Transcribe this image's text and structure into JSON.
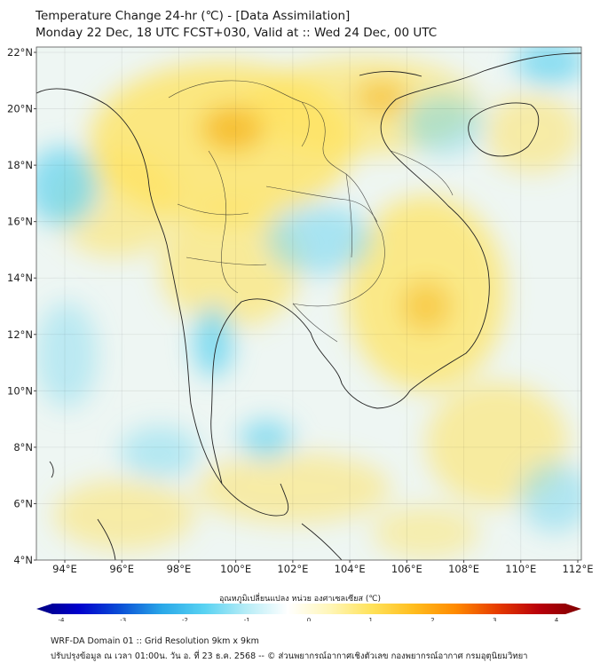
{
  "header": {
    "title_line1": "Temperature Change 24-hr (℃) - [Data Assimilation]",
    "title_line2": "Monday 22 Dec, 18 UTC FCST+030, Valid at :: Wed 24 Dec, 00 UTC"
  },
  "map": {
    "lat_labels": [
      "22°N",
      "20°N",
      "18°N",
      "16°N",
      "14°N",
      "12°N",
      "10°N",
      "8°N",
      "6°N",
      "4°N"
    ],
    "lon_labels": [
      "94°E",
      "96°E",
      "98°E",
      "100°E",
      "102°E",
      "104°E",
      "106°E",
      "108°E",
      "110°E",
      "112°E"
    ],
    "background_color": "#eef6f3",
    "warm_color": "#ffe25a",
    "cool_color": "#6fd6f0",
    "coastline_color": "#222222"
  },
  "colorbar": {
    "label": "อุณหภูมิเปลี่ยนแปลง หน่วย องศาเซลเซียส (℃)",
    "ticks": [
      "-4",
      "-3",
      "-2",
      "-1",
      "0",
      "1",
      "2",
      "3",
      "4"
    ],
    "min": -4,
    "max": 4,
    "colors": [
      "#00007f",
      "#0000cc",
      "#0a4fd6",
      "#2aa8e8",
      "#58d2f2",
      "#b6ecf6",
      "#ffffff",
      "#fff6b8",
      "#ffe25a",
      "#ffbd1e",
      "#ff8a00",
      "#e63b00",
      "#b8000a",
      "#7f0000"
    ]
  },
  "footer": {
    "line1": "WRF-DA Domain 01 :: Grid Resolution 9km x 9km",
    "line2": "ปรับปรุงข้อมูล ณ เวลา 01:00น. วัน อ. ที่ 23 ธ.ค. 2568 -- © ส่วนพยากรณ์อากาศเชิงตัวเลข กองพยากรณ์อากาศ กรมอุตุนิยมวิทยา"
  }
}
